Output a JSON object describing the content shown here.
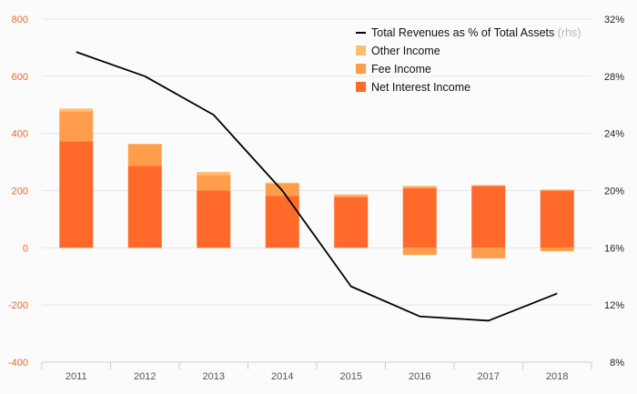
{
  "chart_data": {
    "type": "bar",
    "categories": [
      "2011",
      "2012",
      "2013",
      "2014",
      "2015",
      "2016",
      "2017",
      "2018"
    ],
    "series": [
      {
        "name": "Net Interest Income",
        "kind": "stacked-bar",
        "color": "#ff6a2b",
        "values": [
          372,
          286,
          200,
          182,
          177,
          210,
          216,
          200
        ]
      },
      {
        "name": "Fee Income",
        "kind": "stacked-bar",
        "color": "#ff9d4d",
        "values": [
          105,
          76,
          55,
          42,
          6,
          -25,
          -37,
          -12
        ]
      },
      {
        "name": "Other Income",
        "kind": "stacked-bar",
        "color": "#ffbd72",
        "values": [
          10,
          2,
          10,
          4,
          4,
          7,
          4,
          4
        ]
      },
      {
        "name": "Total Revenues as % of Total Assets",
        "axis": "right",
        "kind": "line",
        "color": "#000000",
        "values": [
          29.7,
          28.0,
          25.3,
          20.0,
          13.3,
          11.2,
          10.9,
          12.8
        ]
      }
    ],
    "legend": {
      "placement": "top-right",
      "line_suffix": "(rhs)",
      "entries": [
        "Total Revenues as % of Total Assets",
        "Other Income",
        "Fee Income",
        "Net Interest Income"
      ]
    },
    "left_axis": {
      "ylim": [
        -400,
        800
      ],
      "ticks": [
        "800",
        "600",
        "400",
        "200",
        "0",
        "-200",
        "-400"
      ]
    },
    "right_axis": {
      "ylim": [
        8,
        32
      ],
      "ticks": [
        "32%",
        "28%",
        "24%",
        "20%",
        "16%",
        "12%",
        "8%"
      ]
    },
    "grid": true
  }
}
